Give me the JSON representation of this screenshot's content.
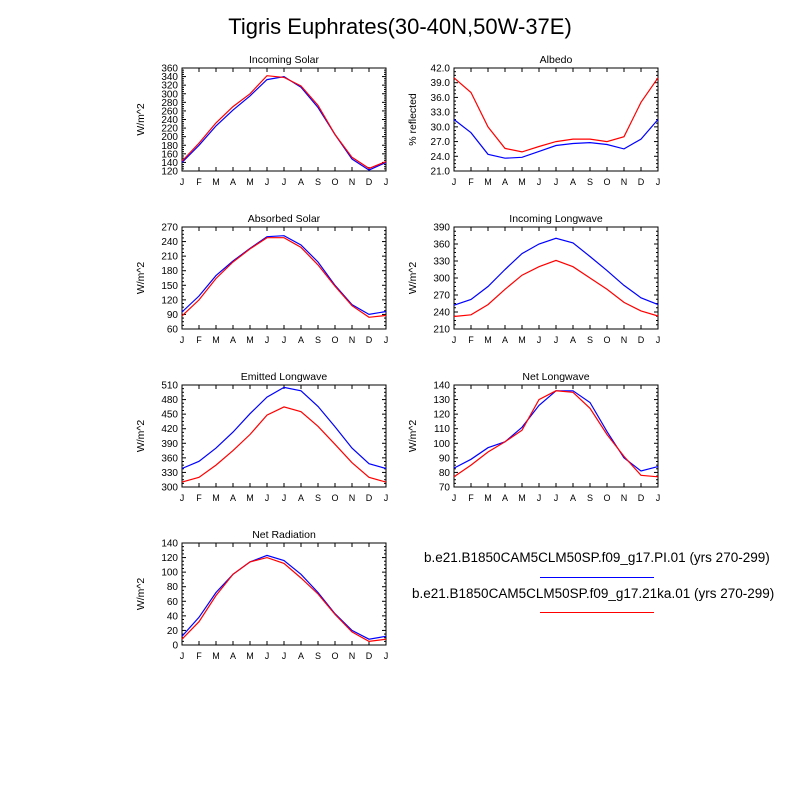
{
  "title": "Tigris Euphrates(30-40N,50W-37E)",
  "colors": {
    "series1": "#0000ff",
    "series2": "#ff0000",
    "axis": "#000000"
  },
  "legend": [
    {
      "label": "b.e21.B1850CAM5CLM50SP.f09_g17.PI.01 (yrs 270-299)",
      "color": "#0000ff"
    },
    {
      "label": "b.e21.B1850CAM5CLM50SP.f09_g17.21ka.01 (yrs 270-299)",
      "color": "#ff0000"
    }
  ],
  "chart_data": [
    {
      "type": "line",
      "title": "Incoming Solar",
      "ylabel": "W/m^2",
      "categories": [
        "J",
        "F",
        "M",
        "A",
        "M",
        "J",
        "J",
        "A",
        "S",
        "O",
        "N",
        "D",
        "J"
      ],
      "ylim": [
        120,
        360
      ],
      "yticks": [
        "120",
        "140",
        "160",
        "180",
        "200",
        "220",
        "240",
        "260",
        "280",
        "300",
        "320",
        "340",
        "360"
      ],
      "series": [
        {
          "values": [
            140,
            180,
            225,
            262,
            295,
            333,
            340,
            315,
            268,
            205,
            148,
            122,
            140
          ]
        },
        {
          "values": [
            143,
            185,
            232,
            270,
            300,
            342,
            338,
            318,
            273,
            205,
            152,
            126,
            142
          ]
        }
      ]
    },
    {
      "type": "line",
      "title": "Albedo",
      "ylabel": "% reflected",
      "categories": [
        "J",
        "F",
        "M",
        "A",
        "M",
        "J",
        "J",
        "A",
        "S",
        "O",
        "N",
        "D",
        "J"
      ],
      "ylim": [
        21,
        42
      ],
      "yticks": [
        "21.0",
        "24.0",
        "27.0",
        "30.0",
        "33.0",
        "36.0",
        "39.0",
        "42.0"
      ],
      "series": [
        {
          "values": [
            31.5,
            28.8,
            24.4,
            23.6,
            23.8,
            25.0,
            26.2,
            26.6,
            26.8,
            26.4,
            25.5,
            27.5,
            31.5
          ]
        },
        {
          "values": [
            40.0,
            37.0,
            30.0,
            25.6,
            24.9,
            26.0,
            27.0,
            27.5,
            27.5,
            27.0,
            28.0,
            35.0,
            40.0
          ]
        }
      ]
    },
    {
      "type": "line",
      "title": "Absorbed Solar",
      "ylabel": "W/m^2",
      "categories": [
        "J",
        "F",
        "M",
        "A",
        "M",
        "J",
        "J",
        "A",
        "S",
        "O",
        "N",
        "D",
        "J"
      ],
      "ylim": [
        60,
        270
      ],
      "yticks": [
        "60",
        "90",
        "120",
        "150",
        "180",
        "210",
        "240",
        "270"
      ],
      "series": [
        {
          "values": [
            95,
            128,
            170,
            200,
            226,
            250,
            252,
            233,
            198,
            150,
            110,
            90,
            96
          ]
        },
        {
          "values": [
            87,
            120,
            164,
            198,
            225,
            248,
            248,
            228,
            192,
            148,
            108,
            84,
            88
          ]
        }
      ]
    },
    {
      "type": "line",
      "title": "Incoming Longwave",
      "ylabel": "W/m^2",
      "categories": [
        "J",
        "F",
        "M",
        "A",
        "M",
        "J",
        "J",
        "A",
        "S",
        "O",
        "N",
        "D",
        "J"
      ],
      "ylim": [
        210,
        390
      ],
      "yticks": [
        "210",
        "240",
        "270",
        "300",
        "330",
        "360",
        "390"
      ],
      "series": [
        {
          "values": [
            252,
            262,
            285,
            315,
            343,
            360,
            370,
            362,
            338,
            313,
            287,
            265,
            253
          ]
        },
        {
          "values": [
            232,
            235,
            253,
            280,
            305,
            320,
            331,
            320,
            300,
            280,
            257,
            242,
            233
          ]
        }
      ]
    },
    {
      "type": "line",
      "title": "Emitted Longwave",
      "ylabel": "W/m^2",
      "categories": [
        "J",
        "F",
        "M",
        "A",
        "M",
        "J",
        "J",
        "A",
        "S",
        "O",
        "N",
        "D",
        "J"
      ],
      "ylim": [
        300,
        510
      ],
      "yticks": [
        "300",
        "330",
        "360",
        "390",
        "420",
        "450",
        "480",
        "510"
      ],
      "series": [
        {
          "values": [
            338,
            353,
            380,
            413,
            451,
            485,
            505,
            498,
            466,
            424,
            380,
            348,
            338
          ]
        },
        {
          "values": [
            310,
            320,
            345,
            375,
            408,
            448,
            465,
            455,
            425,
            388,
            350,
            320,
            310
          ]
        }
      ]
    },
    {
      "type": "line",
      "title": "Net Longwave",
      "ylabel": "W/m^2",
      "categories": [
        "J",
        "F",
        "M",
        "A",
        "M",
        "J",
        "J",
        "A",
        "S",
        "O",
        "N",
        "D",
        "J"
      ],
      "ylim": [
        70,
        140
      ],
      "yticks": [
        "70",
        "80",
        "90",
        "100",
        "110",
        "120",
        "130",
        "140"
      ],
      "series": [
        {
          "values": [
            83,
            89,
            97,
            101,
            111,
            126,
            136,
            136,
            128,
            108,
            90,
            81,
            84
          ]
        },
        {
          "values": [
            77,
            85,
            94,
            101,
            109,
            130,
            136,
            135,
            124,
            106,
            91,
            78,
            77
          ]
        }
      ]
    },
    {
      "type": "line",
      "title": "Net Radiation",
      "ylabel": "W/m^2",
      "categories": [
        "J",
        "F",
        "M",
        "A",
        "M",
        "J",
        "J",
        "A",
        "S",
        "O",
        "N",
        "D",
        "J"
      ],
      "ylim": [
        0,
        140
      ],
      "yticks": [
        "0",
        "20",
        "40",
        "60",
        "80",
        "100",
        "120",
        "140"
      ],
      "series": [
        {
          "values": [
            12,
            38,
            72,
            97,
            114,
            123,
            116,
            97,
            72,
            43,
            20,
            8,
            12
          ]
        },
        {
          "values": [
            8,
            32,
            68,
            97,
            114,
            120,
            112,
            92,
            70,
            42,
            18,
            5,
            8
          ]
        }
      ]
    }
  ]
}
